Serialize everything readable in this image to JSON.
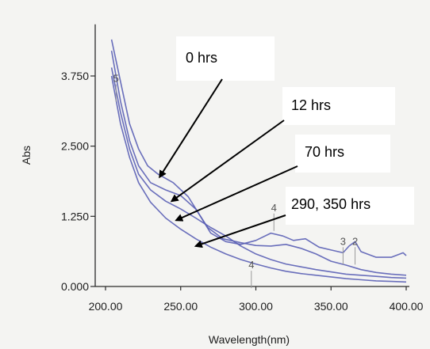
{
  "chart_data": {
    "type": "line",
    "xlabel": "Wavelength(nm)",
    "ylabel": "Abs",
    "xlim": [
      200,
      400
    ],
    "ylim": [
      0,
      4.6
    ],
    "x_ticks": [
      "200.00",
      "250.00",
      "300.00",
      "350.00",
      "400.00"
    ],
    "y_ticks": [
      "0.000",
      "1.250",
      "2.500",
      "3.750"
    ],
    "grid": false,
    "colors": {
      "series": "#5a5fb5",
      "axis": "#2a2a2a",
      "arrow": "#000000"
    },
    "series": [
      {
        "x": [
          204,
          210,
          216,
          222,
          228,
          235,
          245,
          255,
          262,
          270,
          280,
          290,
          300,
          310,
          318,
          325,
          333,
          342,
          350,
          358,
          362,
          366,
          370,
          380,
          390,
          398,
          400
        ],
        "y": [
          4.4,
          3.65,
          2.9,
          2.45,
          2.15,
          2.0,
          1.85,
          1.6,
          1.3,
          0.95,
          0.8,
          0.75,
          0.82,
          0.95,
          0.9,
          0.82,
          0.85,
          0.7,
          0.65,
          0.6,
          0.72,
          0.8,
          0.62,
          0.52,
          0.52,
          0.6,
          0.55
        ]
      },
      {
        "x": [
          204,
          210,
          216,
          222,
          230,
          240,
          250,
          260,
          268,
          278,
          290,
          300,
          310,
          320,
          330,
          340,
          350,
          360,
          370,
          380,
          390,
          400
        ],
        "y": [
          4.2,
          3.3,
          2.6,
          2.15,
          1.85,
          1.72,
          1.62,
          1.38,
          1.05,
          0.85,
          0.78,
          0.73,
          0.72,
          0.75,
          0.68,
          0.58,
          0.45,
          0.38,
          0.3,
          0.25,
          0.22,
          0.2
        ]
      },
      {
        "x": [
          204,
          210,
          216,
          222,
          230,
          240,
          250,
          260,
          270,
          280,
          290,
          300,
          310,
          320,
          330,
          340,
          350,
          360,
          370,
          380,
          390,
          400
        ],
        "y": [
          3.9,
          3.1,
          2.45,
          2.0,
          1.72,
          1.52,
          1.38,
          1.22,
          1.05,
          0.9,
          0.72,
          0.58,
          0.48,
          0.4,
          0.35,
          0.3,
          0.26,
          0.22,
          0.2,
          0.18,
          0.16,
          0.15
        ]
      },
      {
        "x": [
          204,
          210,
          216,
          222,
          230,
          240,
          250,
          260,
          270,
          280,
          290,
          300,
          310,
          320,
          330,
          340,
          350,
          360,
          370,
          380,
          390,
          400
        ],
        "y": [
          3.75,
          2.9,
          2.3,
          1.85,
          1.5,
          1.22,
          1.02,
          0.85,
          0.7,
          0.58,
          0.48,
          0.4,
          0.33,
          0.27,
          0.23,
          0.2,
          0.17,
          0.14,
          0.12,
          0.1,
          0.09,
          0.08
        ]
      }
    ],
    "annotations": [
      {
        "text": "0 hrs",
        "arrow_to": [
          236,
          1.95
        ]
      },
      {
        "text": "12 hrs",
        "arrow_to": [
          244,
          1.52
        ]
      },
      {
        "text": "70  hrs",
        "arrow_to": [
          247,
          1.18
        ]
      },
      {
        "text": "290, 350  hrs",
        "arrow_to": [
          260,
          0.72
        ]
      }
    ],
    "markers": [
      {
        "text": "5",
        "x": 207,
        "y": 3.6
      },
      {
        "text": "4",
        "x": 312,
        "y": 1.3
      },
      {
        "text": "4",
        "x": 297,
        "y": 0.28
      },
      {
        "text": "3",
        "x": 358,
        "y": 0.7
      },
      {
        "text": "2",
        "x": 366,
        "y": 0.7
      }
    ]
  }
}
